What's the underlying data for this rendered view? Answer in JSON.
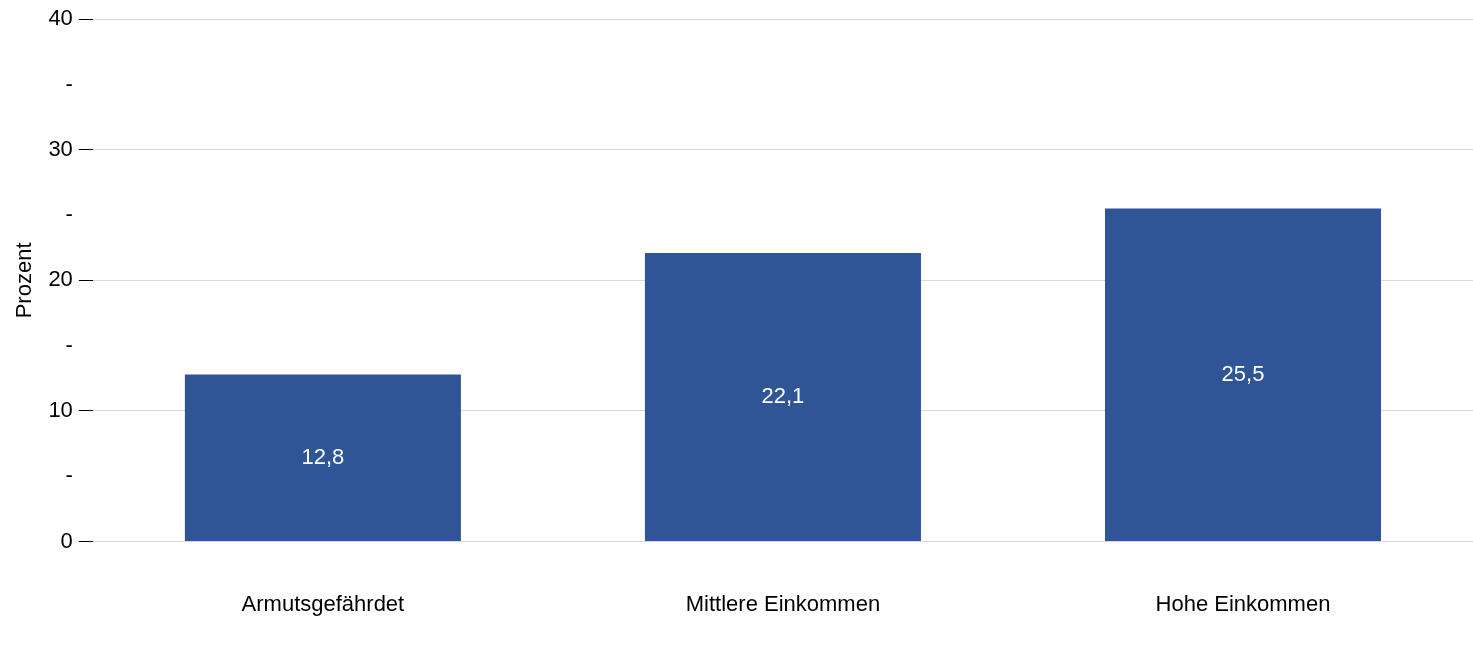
{
  "chart_data": {
    "type": "bar",
    "ylabel": "Prozent",
    "categories": [
      "Armutsgefährdet",
      "Mittlere Einkommen",
      "Hohe Einkommen"
    ],
    "values": [
      12.8,
      22.1,
      25.5
    ],
    "value_labels": [
      "12,8",
      "22,1",
      "25,5"
    ],
    "color": "#2f5597",
    "ylim": [
      0,
      40
    ],
    "yticks": [
      0,
      {
        "value": 5,
        "label": "-"
      },
      10,
      {
        "value": 15,
        "label": "-"
      },
      20,
      {
        "value": 25,
        "label": "-"
      },
      30,
      {
        "value": 35,
        "label": "-"
      },
      40
    ],
    "grid": "y",
    "legend": false
  }
}
